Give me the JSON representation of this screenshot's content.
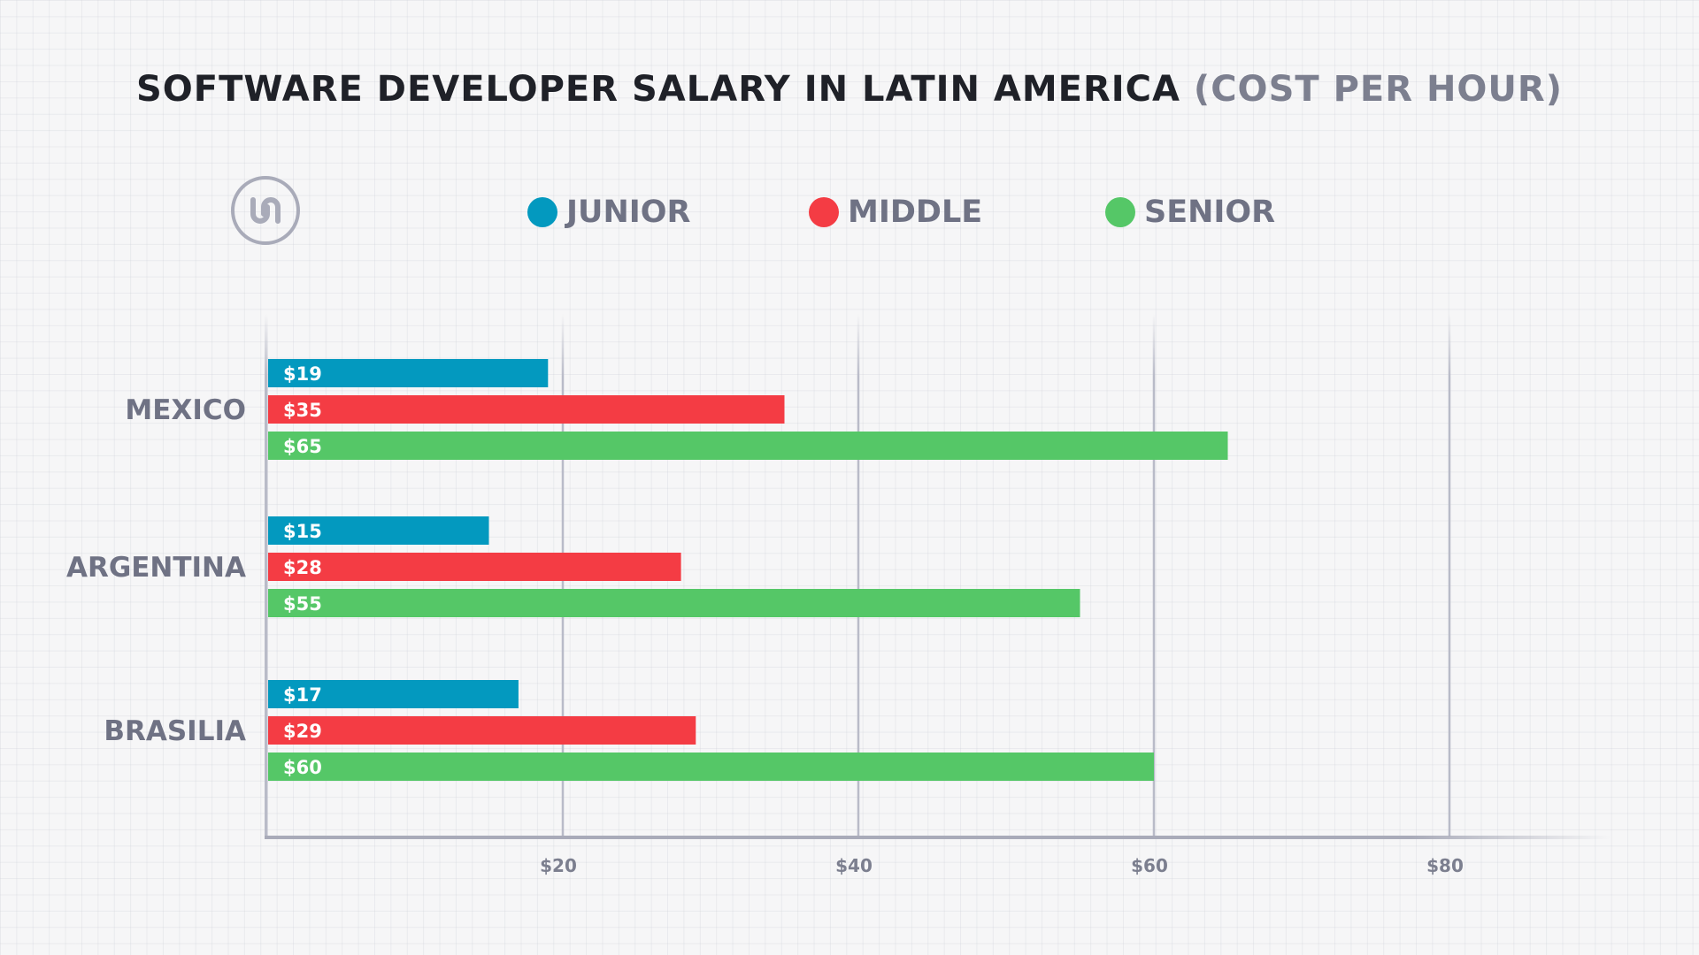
{
  "header": {
    "title_main": "SOFTWARE DEVELOPER SALARY IN LATIN AMERICA",
    "title_sub": "(COST PER HOUR)"
  },
  "logo": {
    "icon": "u-logo-icon"
  },
  "colors": {
    "junior": "#0399bf",
    "middle": "#f43c44",
    "senior": "#55c767",
    "axis": "#a9abb9",
    "grid": "#b9bbc8"
  },
  "chart_data": {
    "type": "bar",
    "orientation": "horizontal",
    "title": "SOFTWARE DEVELOPER SALARY IN LATIN AMERICA (COST PER HOUR)",
    "categories": [
      "MEXICO",
      "ARGENTINA",
      "BRASILIA"
    ],
    "series": [
      {
        "name": "JUNIOR",
        "values": [
          19,
          15,
          17
        ],
        "labels": [
          "$19",
          "$15",
          "$17"
        ]
      },
      {
        "name": "MIDDLE",
        "values": [
          35,
          28,
          29
        ],
        "labels": [
          "$35",
          "$28",
          "$29"
        ]
      },
      {
        "name": "SENIOR",
        "values": [
          65,
          55,
          60
        ],
        "labels": [
          "$65",
          "$55",
          "$60"
        ]
      }
    ],
    "x_ticks": [
      20,
      40,
      60,
      80
    ],
    "x_tick_labels": [
      "$20",
      "$40",
      "$60",
      "$80"
    ],
    "grid": true,
    "legend_position": "top"
  }
}
